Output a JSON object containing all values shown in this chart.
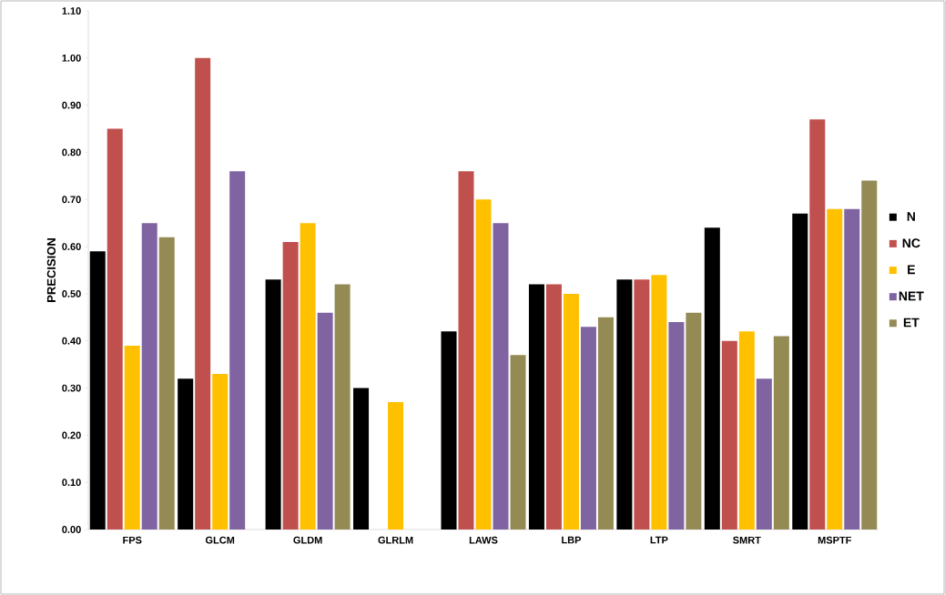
{
  "chart_data": {
    "type": "bar",
    "ylabel": "PRECISION",
    "categories": [
      "FPS",
      "GLCM",
      "GLDM",
      "GLRLM",
      "LAWS",
      "LBP",
      "LTP",
      "SMRT",
      "MSPTF"
    ],
    "series": [
      {
        "name": "N",
        "color": "#000000",
        "values": [
          0.59,
          0.32,
          0.53,
          0.3,
          0.42,
          0.52,
          0.53,
          0.64,
          0.67
        ]
      },
      {
        "name": "NC",
        "color": "#c0504d",
        "values": [
          0.85,
          1.0,
          0.61,
          null,
          0.76,
          0.52,
          0.53,
          0.4,
          0.87
        ]
      },
      {
        "name": "E",
        "color": "#ffc000",
        "values": [
          0.39,
          0.33,
          0.65,
          0.27,
          0.7,
          0.5,
          0.54,
          0.42,
          0.68
        ]
      },
      {
        "name": "NET",
        "color": "#8064a2",
        "values": [
          0.65,
          0.76,
          0.46,
          null,
          0.65,
          0.43,
          0.44,
          0.32,
          0.68
        ]
      },
      {
        "name": "ET",
        "color": "#948a54",
        "values": [
          0.62,
          null,
          0.52,
          null,
          0.37,
          0.45,
          0.46,
          0.41,
          0.74
        ]
      }
    ],
    "ylim": [
      0,
      1.1
    ],
    "yticks": [
      {
        "value": 0,
        "label": "0.00"
      },
      {
        "value": 0.1,
        "label": "0.10"
      },
      {
        "value": 0.2,
        "label": "0.20"
      },
      {
        "value": 0.3,
        "label": "0.30"
      },
      {
        "value": 0.4,
        "label": "0.40"
      },
      {
        "value": 0.5,
        "label": "0.50"
      },
      {
        "value": 0.6,
        "label": "0.60"
      },
      {
        "value": 0.7,
        "label": "0.70"
      },
      {
        "value": 0.8,
        "label": "0.80"
      },
      {
        "value": 0.9,
        "label": "0.90"
      },
      {
        "value": 1.0,
        "label": "1.00"
      },
      {
        "value": 1.1,
        "label": "1.10"
      }
    ],
    "grid": false,
    "legend": "right"
  }
}
